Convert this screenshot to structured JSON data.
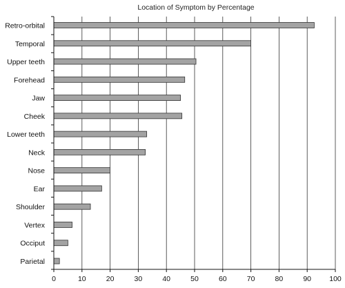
{
  "chart_data": {
    "type": "bar",
    "orientation": "horizontal",
    "title": "Location of Symptom by Percentage",
    "xlabel": "",
    "ylabel": "",
    "categories": [
      "Retro-orbital",
      "Temporal",
      "Upper teeth",
      "Forehead",
      "Jaw",
      "Cheek",
      "Lower teeth",
      "Neck",
      "Nose",
      "Ear",
      "Shoulder",
      "Vertex",
      "Occiput",
      "Parietal"
    ],
    "values": [
      92.5,
      70,
      50.5,
      46.5,
      45,
      45.5,
      33,
      32.5,
      20,
      17,
      13,
      6.5,
      5,
      2
    ],
    "xlim": [
      0,
      100
    ],
    "xticks": [
      "0",
      "10",
      "20",
      "30",
      "40",
      "50",
      "60",
      "70",
      "80",
      "90",
      "100"
    ],
    "grid": "vertical",
    "bar_color": "#a3a3a3"
  }
}
